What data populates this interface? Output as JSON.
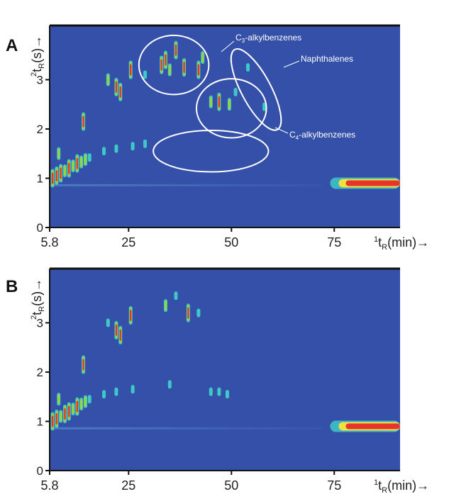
{
  "chart_data": [
    {
      "panel": "A",
      "type": "heatmap",
      "description": "GC×GC contour plot",
      "xlabel_main": "t",
      "xlabel_sup": "1",
      "xlabel_sub": "R",
      "xlabel_unit": "(min)→",
      "ylabel_main": "t",
      "ylabel_sup": "2",
      "ylabel_sub": "R",
      "ylabel_unit": "(s)→",
      "xlim": [
        5.8,
        91
      ],
      "ylim": [
        0,
        4.1
      ],
      "x_ticks": [
        "5.8",
        "25",
        "50",
        "75"
      ],
      "x_tick_values": [
        5.8,
        25,
        50,
        75
      ],
      "y_ticks": [
        "0",
        "1",
        "2",
        "3"
      ],
      "y_tick_values": [
        0,
        1,
        2,
        3
      ],
      "background_color": "#3550a8",
      "regions": [
        {
          "label": "C3-alkylbenzenes",
          "label_main": "C",
          "label_sub": "3",
          "label_rest": "-alkylbenzenes",
          "center": [
            36,
            3.3
          ],
          "rx": 8.5,
          "ry": 0.6,
          "tilt_deg": 0
        },
        {
          "label": "Naphthalenes",
          "center": [
            56,
            2.8
          ],
          "rx": 3.6,
          "ry": 0.92,
          "tilt_deg": -28
        },
        {
          "label": "C4-alkylbenzenes",
          "label_main": "C",
          "label_sub": "4",
          "label_rest": "-alkylbenzenes",
          "center": [
            50,
            2.42
          ],
          "rx": 8.5,
          "ry": 0.6,
          "tilt_deg": 0
        },
        {
          "label": "",
          "center": [
            45,
            1.55
          ],
          "rx": 14,
          "ry": 0.42,
          "tilt_deg": 0
        }
      ],
      "peaks": [
        {
          "x": 6.5,
          "y": 1.0,
          "intensity": "high"
        },
        {
          "x": 7.5,
          "y": 1.05,
          "intensity": "high"
        },
        {
          "x": 8.5,
          "y": 1.1,
          "intensity": "high"
        },
        {
          "x": 9.5,
          "y": 1.15,
          "intensity": "medium"
        },
        {
          "x": 10.5,
          "y": 1.2,
          "intensity": "high"
        },
        {
          "x": 11.5,
          "y": 1.25,
          "intensity": "medium"
        },
        {
          "x": 12.5,
          "y": 1.3,
          "intensity": "high"
        },
        {
          "x": 13.5,
          "y": 1.33,
          "intensity": "medium"
        },
        {
          "x": 14.5,
          "y": 1.38,
          "intensity": "medium"
        },
        {
          "x": 15.5,
          "y": 1.42,
          "intensity": "low"
        },
        {
          "x": 8.0,
          "y": 1.5,
          "intensity": "medium"
        },
        {
          "x": 14.0,
          "y": 2.15,
          "intensity": "high"
        },
        {
          "x": 20.0,
          "y": 3.0,
          "intensity": "medium"
        },
        {
          "x": 22.0,
          "y": 2.85,
          "intensity": "high"
        },
        {
          "x": 23.0,
          "y": 2.75,
          "intensity": "high"
        },
        {
          "x": 25.5,
          "y": 3.2,
          "intensity": "high"
        },
        {
          "x": 29.0,
          "y": 3.1,
          "intensity": "low"
        },
        {
          "x": 33.0,
          "y": 3.3,
          "intensity": "high"
        },
        {
          "x": 34.0,
          "y": 3.4,
          "intensity": "high"
        },
        {
          "x": 35.0,
          "y": 3.2,
          "intensity": "medium"
        },
        {
          "x": 36.5,
          "y": 3.6,
          "intensity": "high"
        },
        {
          "x": 38.5,
          "y": 3.25,
          "intensity": "high"
        },
        {
          "x": 42.0,
          "y": 3.2,
          "intensity": "high"
        },
        {
          "x": 43.0,
          "y": 3.45,
          "intensity": "medium"
        },
        {
          "x": 45.0,
          "y": 2.55,
          "intensity": "medium"
        },
        {
          "x": 47.0,
          "y": 2.55,
          "intensity": "high"
        },
        {
          "x": 49.5,
          "y": 2.5,
          "intensity": "medium"
        },
        {
          "x": 51.0,
          "y": 2.75,
          "intensity": "low"
        },
        {
          "x": 54.0,
          "y": 3.25,
          "intensity": "low"
        },
        {
          "x": 58.0,
          "y": 2.45,
          "intensity": "low"
        },
        {
          "x": 19.0,
          "y": 1.55,
          "intensity": "low"
        },
        {
          "x": 22.0,
          "y": 1.6,
          "intensity": "low"
        },
        {
          "x": 26.0,
          "y": 1.65,
          "intensity": "low"
        },
        {
          "x": 29.0,
          "y": 1.7,
          "intensity": "low"
        }
      ],
      "solvent_band": {
        "x_start": 74,
        "x_end": 91,
        "y": 0.9,
        "intensity": "high"
      }
    },
    {
      "panel": "B",
      "type": "heatmap",
      "description": "GC×GC contour plot",
      "xlabel_main": "t",
      "xlabel_sup": "1",
      "xlabel_sub": "R",
      "xlabel_unit": "(min)→",
      "ylabel_main": "t",
      "ylabel_sup": "2",
      "ylabel_sub": "R",
      "ylabel_unit": "(s)→",
      "xlim": [
        5.8,
        91
      ],
      "ylim": [
        0,
        4.1
      ],
      "x_ticks": [
        "5.8",
        "25",
        "50",
        "75"
      ],
      "x_tick_values": [
        5.8,
        25,
        50,
        75
      ],
      "y_ticks": [
        "0",
        "1",
        "2",
        "3"
      ],
      "y_tick_values": [
        0,
        1,
        2,
        3
      ],
      "background_color": "#3550a8",
      "regions": [],
      "peaks": [
        {
          "x": 6.5,
          "y": 1.0,
          "intensity": "high"
        },
        {
          "x": 7.5,
          "y": 1.05,
          "intensity": "high"
        },
        {
          "x": 8.5,
          "y": 1.1,
          "intensity": "medium"
        },
        {
          "x": 9.5,
          "y": 1.15,
          "intensity": "high"
        },
        {
          "x": 10.5,
          "y": 1.2,
          "intensity": "high"
        },
        {
          "x": 11.5,
          "y": 1.25,
          "intensity": "medium"
        },
        {
          "x": 12.5,
          "y": 1.3,
          "intensity": "high"
        },
        {
          "x": 13.5,
          "y": 1.35,
          "intensity": "medium"
        },
        {
          "x": 14.5,
          "y": 1.4,
          "intensity": "medium"
        },
        {
          "x": 15.5,
          "y": 1.45,
          "intensity": "low"
        },
        {
          "x": 8.0,
          "y": 1.45,
          "intensity": "medium"
        },
        {
          "x": 14.0,
          "y": 2.15,
          "intensity": "high"
        },
        {
          "x": 20.0,
          "y": 3.0,
          "intensity": "low"
        },
        {
          "x": 22.0,
          "y": 2.85,
          "intensity": "high"
        },
        {
          "x": 23.0,
          "y": 2.75,
          "intensity": "high"
        },
        {
          "x": 25.5,
          "y": 3.15,
          "intensity": "high"
        },
        {
          "x": 34.0,
          "y": 3.35,
          "intensity": "medium"
        },
        {
          "x": 36.5,
          "y": 3.55,
          "intensity": "low"
        },
        {
          "x": 39.5,
          "y": 3.2,
          "intensity": "high"
        },
        {
          "x": 42.0,
          "y": 3.2,
          "intensity": "low"
        },
        {
          "x": 45.0,
          "y": 1.6,
          "intensity": "low"
        },
        {
          "x": 47.0,
          "y": 1.6,
          "intensity": "low"
        },
        {
          "x": 49.0,
          "y": 1.55,
          "intensity": "low"
        },
        {
          "x": 19.0,
          "y": 1.55,
          "intensity": "low"
        },
        {
          "x": 22.0,
          "y": 1.6,
          "intensity": "low"
        },
        {
          "x": 26.0,
          "y": 1.65,
          "intensity": "low"
        },
        {
          "x": 35.0,
          "y": 1.75,
          "intensity": "low"
        }
      ],
      "solvent_band": {
        "x_start": 74,
        "x_end": 91,
        "y": 0.9,
        "intensity": "high"
      }
    }
  ],
  "colors": {
    "background": "#3550a8",
    "low": "#3ec8c8",
    "medium": "#8fd44a",
    "high": "#e8352c",
    "region_outline": "#ffffff",
    "axis": "#111111"
  }
}
